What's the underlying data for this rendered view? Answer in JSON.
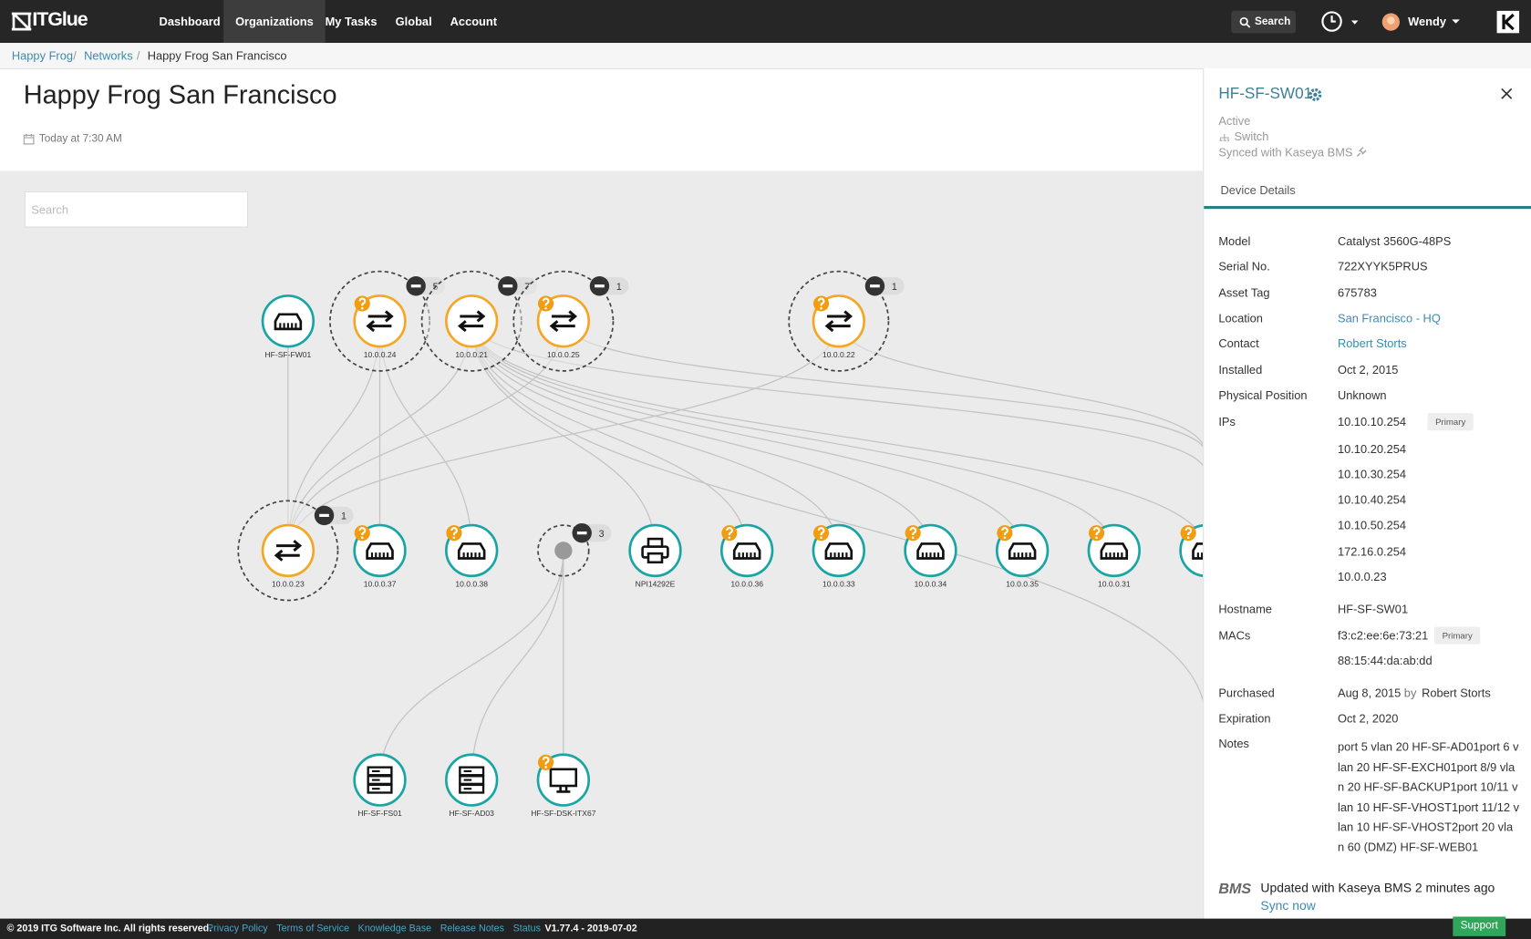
{
  "nav": {
    "logo": "ITGlue",
    "items": [
      "Dashboard",
      "Organizations",
      "My Tasks",
      "Global",
      "Account"
    ],
    "search": "Search",
    "user": "Wendy"
  },
  "breadcrumb": [
    "Happy Frog",
    "Networks",
    "Happy Frog San Francisco"
  ],
  "header": {
    "title": "Happy Frog San Francisco",
    "date": "Today at 7:30 AM"
  },
  "map": {
    "search_placeholder": "Search",
    "nodes": [
      {
        "label": "HF-SF-FW01"
      },
      {
        "label": "10.0.0.24",
        "count": 5
      },
      {
        "label": "10.0.0.21",
        "count": 7
      },
      {
        "label": "10.0.0.25",
        "count": 1
      },
      {
        "label": "10.0.0.22",
        "count": 1
      },
      {
        "label": "10.0.0.23",
        "count": 1
      },
      {
        "label": "10.0.0.37"
      },
      {
        "label": "10.0.0.38"
      },
      {
        "label": null,
        "count": 3
      },
      {
        "label": "NPI14292E"
      },
      {
        "label": "10.0.0.36"
      },
      {
        "label": "10.0.0.33"
      },
      {
        "label": "10.0.0.34"
      },
      {
        "label": "10.0.0.35"
      },
      {
        "label": "10.0.0.31"
      },
      {
        "label": "HF-SF-FS01"
      },
      {
        "label": "HF-SF-AD03"
      },
      {
        "label": "HF-SF-DSK-ITX67"
      }
    ]
  },
  "panel": {
    "title": "HF-SF-SW01",
    "status": "Active",
    "type": "Switch",
    "sync": "Synced with Kaseya BMS",
    "tab": "Device Details",
    "fields": [
      {
        "label": "Model",
        "value": "Catalyst 3560G-48PS"
      },
      {
        "label": "Serial No.",
        "value": "722XYYK5PRUS"
      },
      {
        "label": "Asset Tag",
        "value": "675783"
      },
      {
        "label": "Location",
        "value": "San Francisco - HQ"
      },
      {
        "label": "Contact",
        "value": "Robert Storts"
      },
      {
        "label": "Installed",
        "value": "Oct 2, 2015"
      },
      {
        "label": "Physical Position",
        "value": "Unknown"
      }
    ],
    "ips_label": "IPs",
    "ips": [
      "10.10.10.254",
      "10.10.20.254",
      "10.10.30.254",
      "10.10.40.254",
      "10.10.50.254",
      "172.16.0.254",
      "10.0.0.23"
    ],
    "primary": "Primary",
    "hostname_label": "Hostname",
    "hostname": "HF-SF-SW01",
    "macs_label": "MACs",
    "macs": [
      "f3:c2:ee:6e:73:21",
      "88:15:44:da:ab:dd"
    ],
    "purchased_label": "Purchased",
    "purchased": "Aug 8, 2015",
    "by": "by",
    "purchased_by": "Robert Storts",
    "expiration_label": "Expiration",
    "expiration": "Oct 2, 2020",
    "notes_label": "Notes",
    "notes": "port 5 vlan 20 HF-SF-AD01port 6 vlan 20 HF-SF-EXCH01port 8/9 vlan 20 HF-SF-BACKUP1port 10/11 vlan 10 HF-SF-VHOST1port 11/12 vlan 10 HF-SF-VHOST2port 20 vlan 60 (DMZ) HF-SF-WEB01",
    "bms_logo": "BMS",
    "bms_update": "Updated with Kaseya BMS 2 minutes ago",
    "sync_now": "Sync now"
  },
  "footer": {
    "copyright": "© 2019 ITG Software Inc. All rights reserved.",
    "links": [
      "Privacy Policy",
      "Terms of Service",
      "Knowledge Base",
      "Release Notes",
      "Status"
    ],
    "version": "V1.77.4 - 2019-07-02",
    "support": "Support"
  }
}
